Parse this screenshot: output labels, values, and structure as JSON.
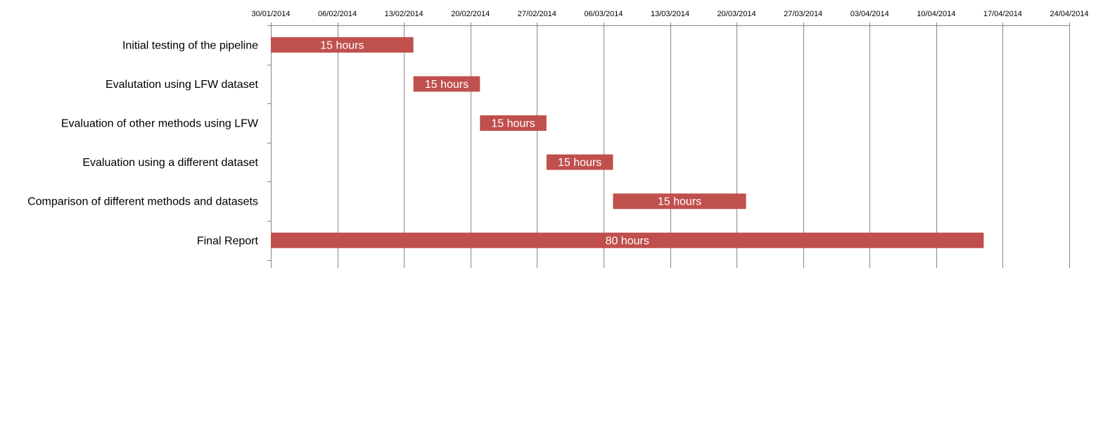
{
  "chart_data": {
    "type": "bar",
    "orientation": "horizontal-gantt",
    "title": "",
    "xlabel": "",
    "ylabel": "",
    "x_ticks": [
      "30/01/2014",
      "06/02/2014",
      "13/02/2014",
      "20/02/2014",
      "27/02/2014",
      "06/03/2014",
      "13/03/2014",
      "20/03/2014",
      "27/03/2014",
      "03/04/2014",
      "10/04/2014",
      "17/04/2014",
      "24/04/2014"
    ],
    "xlim": [
      "30/01/2014",
      "24/04/2014"
    ],
    "x_axis_position": "top",
    "grid": true,
    "bar_color": "#c0504d",
    "tasks": [
      {
        "name": "Initial testing of the pipeline",
        "start": "30/01/2014",
        "end": "14/02/2014",
        "label": "15 hours"
      },
      {
        "name": "Evalutation using LFW dataset",
        "start": "14/02/2014",
        "end": "21/02/2014",
        "label": "15 hours"
      },
      {
        "name": "Evaluation of other methods using LFW",
        "start": "21/02/2014",
        "end": "28/02/2014",
        "label": "15 hours"
      },
      {
        "name": "Evaluation using a different dataset",
        "start": "28/02/2014",
        "end": "07/03/2014",
        "label": "15 hours"
      },
      {
        "name": "Comparison of different methods and datasets",
        "start": "07/03/2014",
        "end": "21/03/2014",
        "label": "15 hours"
      },
      {
        "name": "Final Report",
        "start": "30/01/2014",
        "end": "15/04/2014",
        "label": "80 hours"
      }
    ]
  }
}
